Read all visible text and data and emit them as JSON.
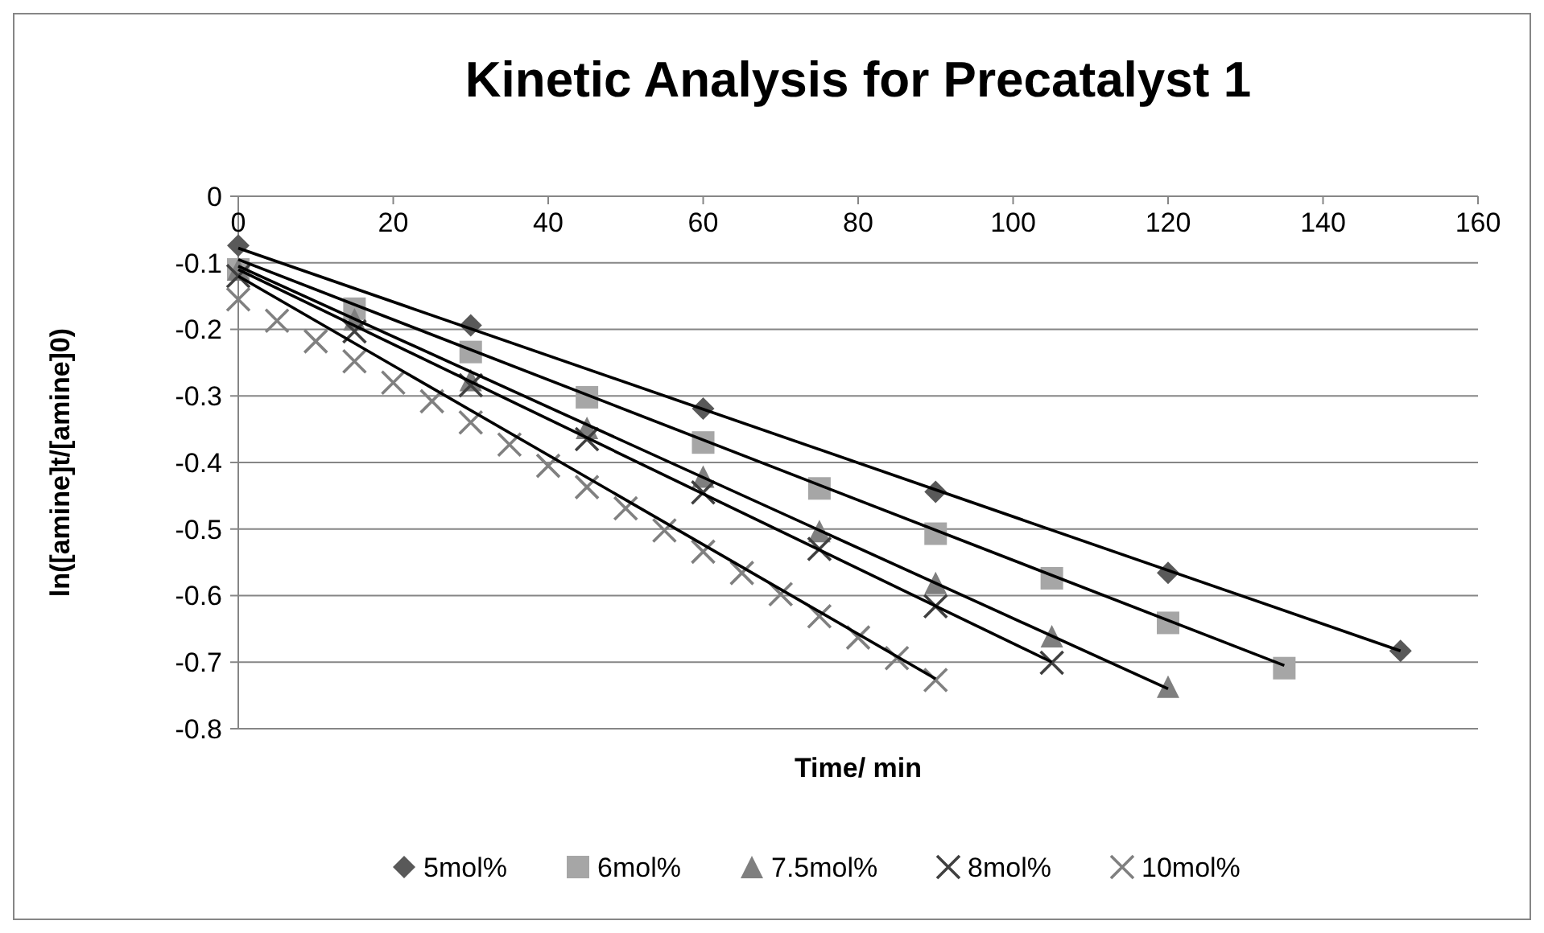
{
  "chart_data": {
    "type": "scatter",
    "title": "Kinetic Analysis for Precatalyst 1",
    "xlabel": "Time/ min",
    "ylabel": "ln([amine]t/[amine]0)",
    "xlim": [
      0,
      160
    ],
    "xticks": [
      0,
      20,
      40,
      60,
      80,
      100,
      120,
      140,
      160
    ],
    "ylim": [
      -0.8,
      0
    ],
    "yticks": [
      0,
      -0.1,
      -0.2,
      -0.3,
      -0.4,
      -0.5,
      -0.6,
      -0.7,
      -0.8
    ],
    "grid": "y",
    "legend": "bottom",
    "series": [
      {
        "name": "5mol%",
        "color": "#595959",
        "marker": "diamond",
        "x": [
          0,
          30,
          60,
          90,
          120,
          150
        ],
        "values": [
          -0.074,
          -0.194,
          -0.319,
          -0.444,
          -0.566,
          -0.683
        ]
      },
      {
        "name": "6mol%",
        "color": "#a6a6a6",
        "marker": "square",
        "x": [
          0,
          15,
          30,
          45,
          60,
          75,
          90,
          105,
          120,
          135
        ],
        "values": [
          -0.11,
          -0.169,
          -0.234,
          -0.302,
          -0.37,
          -0.439,
          -0.507,
          -0.574,
          -0.641,
          -0.709
        ]
      },
      {
        "name": "7.5mol%",
        "color": "#7f7f7f",
        "marker": "triangle",
        "x": [
          0,
          15,
          30,
          45,
          60,
          75,
          90,
          105,
          120
        ],
        "values": [
          -0.11,
          -0.185,
          -0.276,
          -0.348,
          -0.421,
          -0.503,
          -0.581,
          -0.661,
          -0.737
        ]
      },
      {
        "name": "8mol%",
        "color": "#404040",
        "marker": "cross",
        "x": [
          0,
          15,
          30,
          45,
          60,
          75,
          90,
          105
        ],
        "values": [
          -0.12,
          -0.203,
          -0.284,
          -0.365,
          -0.445,
          -0.53,
          -0.616,
          -0.701
        ]
      },
      {
        "name": "10mol%",
        "color": "#808080",
        "marker": "cross",
        "x": [
          0,
          5,
          10,
          15,
          20,
          25,
          30,
          35,
          40,
          45,
          50,
          55,
          60,
          65,
          70,
          75,
          80,
          85,
          90
        ],
        "values": [
          -0.155,
          -0.187,
          -0.218,
          -0.248,
          -0.28,
          -0.308,
          -0.34,
          -0.373,
          -0.405,
          -0.437,
          -0.469,
          -0.502,
          -0.534,
          -0.566,
          -0.598,
          -0.631,
          -0.663,
          -0.694,
          -0.727
        ]
      },
      {
        "type": "line",
        "color": "#000000",
        "marker": "none",
        "x": [
          0,
          150
        ],
        "values": [
          -0.078,
          -0.683
        ]
      },
      {
        "type": "line",
        "color": "#000000",
        "marker": "none",
        "x": [
          0,
          135
        ],
        "values": [
          -0.095,
          -0.705
        ]
      },
      {
        "type": "line",
        "color": "#000000",
        "marker": "none",
        "x": [
          0,
          120
        ],
        "values": [
          -0.105,
          -0.74
        ]
      },
      {
        "type": "line",
        "color": "#000000",
        "marker": "none",
        "x": [
          0,
          105
        ],
        "values": [
          -0.11,
          -0.7
        ]
      },
      {
        "type": "line",
        "color": "#000000",
        "marker": "none",
        "x": [
          0,
          90
        ],
        "values": [
          -0.12,
          -0.725
        ]
      }
    ]
  }
}
